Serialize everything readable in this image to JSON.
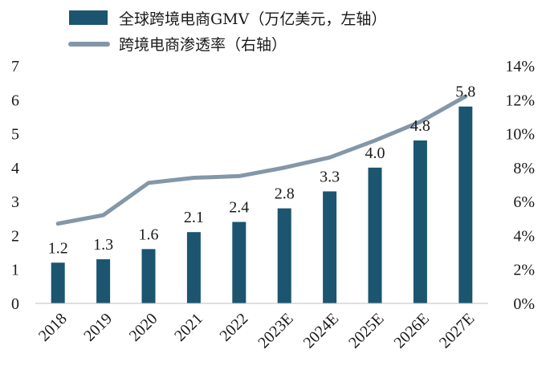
{
  "chart_data": {
    "type": "bar+line",
    "categories": [
      "2018",
      "2019",
      "2020",
      "2021",
      "2022",
      "2023E",
      "2024E",
      "2025E",
      "2026E",
      "2027E"
    ],
    "series": [
      {
        "name": "全球跨境电商GMV（万亿美元，左轴）",
        "type": "bar",
        "axis": "left",
        "values": [
          1.2,
          1.3,
          1.6,
          2.1,
          2.4,
          2.8,
          3.3,
          4.0,
          4.8,
          5.8
        ],
        "labels": [
          "1.2",
          "1.3",
          "1.6",
          "2.1",
          "2.4",
          "2.8",
          "3.3",
          "4.0",
          "4.8",
          "5.8"
        ],
        "color": "#1b5570"
      },
      {
        "name": "跨境电商渗透率（右轴）",
        "type": "line",
        "axis": "right",
        "values": [
          0.047,
          0.052,
          0.071,
          0.074,
          0.075,
          0.08,
          0.086,
          0.096,
          0.107,
          0.122
        ],
        "color": "#8397a9"
      }
    ],
    "left_axis": {
      "ylim": [
        0,
        7
      ],
      "ticks": [
        "0",
        "1",
        "2",
        "3",
        "4",
        "5",
        "6",
        "7"
      ]
    },
    "right_axis": {
      "ylim": [
        0,
        0.14
      ],
      "ticks": [
        "0%",
        "2%",
        "4%",
        "6%",
        "8%",
        "10%",
        "12%",
        "14%"
      ]
    },
    "legend_position": "top-left",
    "grid": false
  }
}
